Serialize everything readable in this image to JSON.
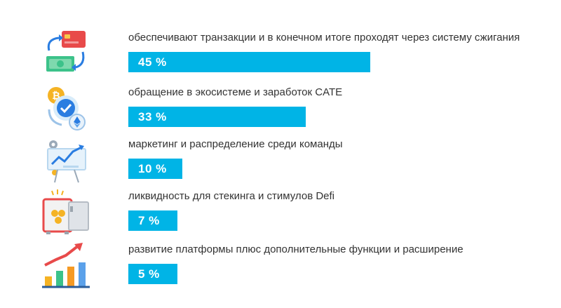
{
  "bar_color": "#00b4e6",
  "chart_data": {
    "type": "bar",
    "orientation": "horizontal",
    "categories": [
      "обеспечивают транзакции и в конечном итоге проходят через систему сжигания",
      "обращение в экосистеме и заработок CATE",
      "маркетинг и распределение среди команды",
      "ликвидность для стекинга и стимулов Defi",
      "развитие платформы плюс дополнительные функции и расширение"
    ],
    "values": [
      45,
      33,
      10,
      7,
      5
    ],
    "value_labels": [
      "45 %",
      "33 %",
      "10 %",
      "7 %",
      "5 %"
    ],
    "icons": [
      "card-cash-exchange-icon",
      "crypto-exchange-icon",
      "marketing-chart-icon",
      "safe-vault-icon",
      "growth-chart-icon"
    ],
    "title": "",
    "xlabel": "",
    "ylabel": "",
    "xlim": [
      0,
      45
    ]
  }
}
